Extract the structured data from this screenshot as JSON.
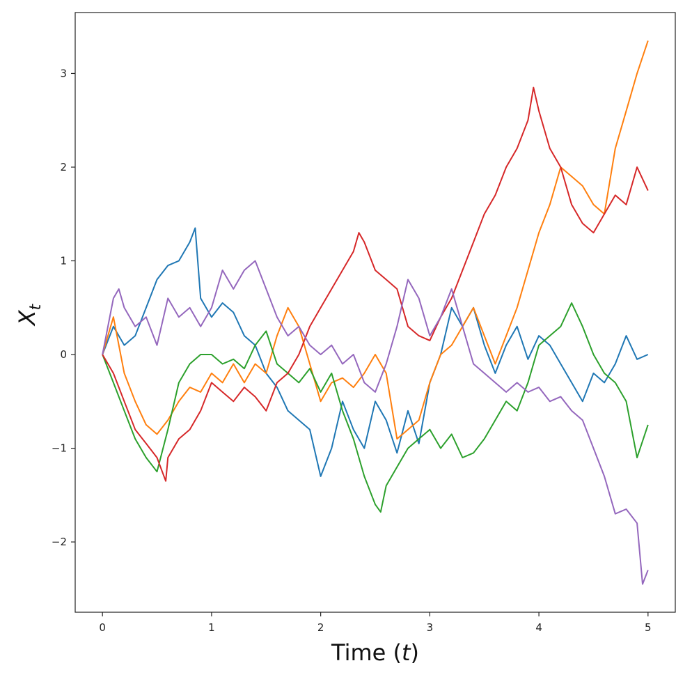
{
  "chart_data": {
    "type": "line",
    "title": "",
    "xlabel": "Time",
    "xlabel_var": "t",
    "ylabel_base": "X",
    "ylabel_sub": "t",
    "xlim": [
      -0.25,
      5.25
    ],
    "ylim": [
      -2.75,
      3.65
    ],
    "xticks": [
      0,
      1,
      2,
      3,
      4,
      5
    ],
    "yticks": [
      -2,
      -1,
      0,
      1,
      2,
      3
    ],
    "xtick_labels": [
      "0",
      "1",
      "2",
      "3",
      "4",
      "5"
    ],
    "ytick_labels": [
      "−2",
      "−1",
      "0",
      "1",
      "2",
      "3"
    ],
    "grid": false,
    "series": [
      {
        "color": "#1f77b4",
        "x": [
          0,
          0.1,
          0.2,
          0.3,
          0.4,
          0.5,
          0.6,
          0.7,
          0.8,
          0.85,
          0.9,
          1.0,
          1.1,
          1.2,
          1.3,
          1.4,
          1.5,
          1.6,
          1.7,
          1.8,
          1.9,
          2.0,
          2.1,
          2.2,
          2.3,
          2.4,
          2.5,
          2.6,
          2.7,
          2.8,
          2.9,
          3.0,
          3.1,
          3.2,
          3.3,
          3.4,
          3.5,
          3.6,
          3.7,
          3.8,
          3.9,
          4.0,
          4.1,
          4.2,
          4.3,
          4.4,
          4.5,
          4.6,
          4.7,
          4.8,
          4.9,
          5.0
        ],
        "y": [
          0,
          0.3,
          0.1,
          0.2,
          0.5,
          0.8,
          0.95,
          1.0,
          1.2,
          1.35,
          0.6,
          0.4,
          0.55,
          0.45,
          0.2,
          0.1,
          -0.2,
          -0.35,
          -0.6,
          -0.7,
          -0.8,
          -1.3,
          -1.0,
          -0.5,
          -0.8,
          -1.0,
          -0.5,
          -0.7,
          -1.05,
          -0.6,
          -0.95,
          -0.3,
          0.0,
          0.5,
          0.3,
          0.5,
          0.1,
          -0.2,
          0.1,
          0.3,
          -0.05,
          0.2,
          0.1,
          -0.1,
          -0.3,
          -0.5,
          -0.2,
          -0.3,
          -0.1,
          0.2,
          -0.05,
          0.0
        ]
      },
      {
        "color": "#ff7f0e",
        "x": [
          0,
          0.1,
          0.2,
          0.3,
          0.4,
          0.5,
          0.6,
          0.7,
          0.8,
          0.9,
          1.0,
          1.1,
          1.2,
          1.3,
          1.4,
          1.5,
          1.6,
          1.7,
          1.8,
          1.9,
          2.0,
          2.1,
          2.2,
          2.3,
          2.4,
          2.5,
          2.6,
          2.7,
          2.8,
          2.9,
          3.0,
          3.1,
          3.2,
          3.3,
          3.4,
          3.5,
          3.6,
          3.7,
          3.8,
          3.9,
          4.0,
          4.1,
          4.2,
          4.3,
          4.4,
          4.5,
          4.6,
          4.7,
          4.8,
          4.9,
          5.0
        ],
        "y": [
          0,
          0.4,
          -0.2,
          -0.5,
          -0.75,
          -0.85,
          -0.7,
          -0.5,
          -0.35,
          -0.4,
          -0.2,
          -0.3,
          -0.1,
          -0.3,
          -0.1,
          -0.2,
          0.2,
          0.5,
          0.3,
          -0.1,
          -0.5,
          -0.3,
          -0.25,
          -0.35,
          -0.2,
          0.0,
          -0.2,
          -0.9,
          -0.8,
          -0.7,
          -0.3,
          0.0,
          0.1,
          0.3,
          0.5,
          0.2,
          -0.1,
          0.2,
          0.5,
          0.9,
          1.3,
          1.6,
          2.0,
          1.9,
          1.8,
          1.6,
          1.5,
          2.2,
          2.6,
          3.0,
          3.35
        ]
      },
      {
        "color": "#2ca02c",
        "x": [
          0,
          0.1,
          0.2,
          0.3,
          0.4,
          0.5,
          0.6,
          0.7,
          0.8,
          0.9,
          1.0,
          1.1,
          1.2,
          1.3,
          1.4,
          1.5,
          1.6,
          1.7,
          1.8,
          1.9,
          2.0,
          2.1,
          2.2,
          2.3,
          2.4,
          2.5,
          2.55,
          2.6,
          2.7,
          2.8,
          2.9,
          3.0,
          3.1,
          3.2,
          3.3,
          3.4,
          3.5,
          3.6,
          3.7,
          3.8,
          3.9,
          4.0,
          4.1,
          4.2,
          4.3,
          4.4,
          4.5,
          4.6,
          4.7,
          4.8,
          4.9,
          5.0
        ],
        "y": [
          0,
          -0.3,
          -0.6,
          -0.9,
          -1.1,
          -1.25,
          -0.8,
          -0.3,
          -0.1,
          0.0,
          0.0,
          -0.1,
          -0.05,
          -0.15,
          0.1,
          0.25,
          -0.1,
          -0.2,
          -0.3,
          -0.15,
          -0.4,
          -0.2,
          -0.6,
          -0.9,
          -1.3,
          -1.6,
          -1.68,
          -1.4,
          -1.2,
          -1.0,
          -0.9,
          -0.8,
          -1.0,
          -0.85,
          -1.1,
          -1.05,
          -0.9,
          -0.7,
          -0.5,
          -0.6,
          -0.3,
          0.1,
          0.2,
          0.3,
          0.55,
          0.3,
          0.0,
          -0.2,
          -0.3,
          -0.5,
          -1.1,
          -0.75
        ]
      },
      {
        "color": "#d62728",
        "x": [
          0,
          0.1,
          0.2,
          0.3,
          0.4,
          0.5,
          0.58,
          0.6,
          0.7,
          0.8,
          0.9,
          1.0,
          1.1,
          1.2,
          1.3,
          1.4,
          1.5,
          1.6,
          1.7,
          1.8,
          1.9,
          2.0,
          2.1,
          2.2,
          2.3,
          2.35,
          2.4,
          2.5,
          2.6,
          2.7,
          2.8,
          2.9,
          3.0,
          3.1,
          3.2,
          3.3,
          3.4,
          3.5,
          3.6,
          3.7,
          3.8,
          3.9,
          3.95,
          4.0,
          4.1,
          4.2,
          4.3,
          4.4,
          4.5,
          4.6,
          4.7,
          4.8,
          4.9,
          5.0
        ],
        "y": [
          0,
          -0.2,
          -0.5,
          -0.8,
          -0.95,
          -1.1,
          -1.35,
          -1.1,
          -0.9,
          -0.8,
          -0.6,
          -0.3,
          -0.4,
          -0.5,
          -0.35,
          -0.45,
          -0.6,
          -0.3,
          -0.2,
          0.0,
          0.3,
          0.5,
          0.7,
          0.9,
          1.1,
          1.3,
          1.2,
          0.9,
          0.8,
          0.7,
          0.3,
          0.2,
          0.15,
          0.4,
          0.6,
          0.9,
          1.2,
          1.5,
          1.7,
          2.0,
          2.2,
          2.5,
          2.85,
          2.6,
          2.2,
          2.0,
          1.6,
          1.4,
          1.3,
          1.5,
          1.7,
          1.6,
          2.0,
          1.75
        ]
      },
      {
        "color": "#9467bd",
        "x": [
          0,
          0.1,
          0.15,
          0.2,
          0.3,
          0.4,
          0.5,
          0.6,
          0.7,
          0.8,
          0.9,
          1.0,
          1.1,
          1.2,
          1.3,
          1.4,
          1.5,
          1.6,
          1.7,
          1.8,
          1.9,
          2.0,
          2.1,
          2.2,
          2.3,
          2.4,
          2.5,
          2.6,
          2.7,
          2.8,
          2.9,
          3.0,
          3.1,
          3.2,
          3.3,
          3.4,
          3.5,
          3.6,
          3.7,
          3.8,
          3.9,
          4.0,
          4.1,
          4.2,
          4.3,
          4.4,
          4.5,
          4.6,
          4.7,
          4.8,
          4.9,
          4.95,
          5.0
        ],
        "y": [
          0,
          0.6,
          0.7,
          0.5,
          0.3,
          0.4,
          0.1,
          0.6,
          0.4,
          0.5,
          0.3,
          0.5,
          0.9,
          0.7,
          0.9,
          1.0,
          0.7,
          0.4,
          0.2,
          0.3,
          0.1,
          0.0,
          0.1,
          -0.1,
          0.0,
          -0.3,
          -0.4,
          -0.1,
          0.3,
          0.8,
          0.6,
          0.2,
          0.4,
          0.7,
          0.3,
          -0.1,
          -0.2,
          -0.3,
          -0.4,
          -0.3,
          -0.4,
          -0.35,
          -0.5,
          -0.45,
          -0.6,
          -0.7,
          -1.0,
          -1.3,
          -1.7,
          -1.65,
          -1.8,
          -2.45,
          -2.3
        ]
      }
    ]
  }
}
